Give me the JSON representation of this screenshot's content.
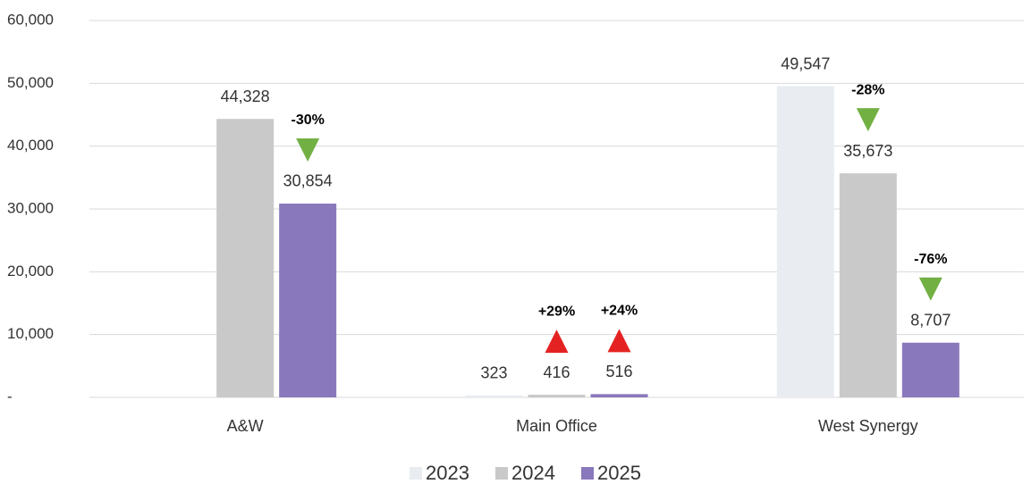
{
  "chart_data": {
    "type": "bar",
    "categories": [
      "A&W",
      "Main Office",
      "West Synergy"
    ],
    "series": [
      {
        "name": "2023",
        "color": "#e9edf1",
        "values": [
          null,
          323,
          49547
        ],
        "value_labels": [
          null,
          "323",
          "49,547"
        ],
        "changes": [
          null,
          null,
          null
        ],
        "change_labels": [
          null,
          null,
          null
        ]
      },
      {
        "name": "2024",
        "color": "#c9c9c9",
        "values": [
          44328,
          416,
          35673
        ],
        "value_labels": [
          "44,328",
          "416",
          "35,673"
        ],
        "changes": [
          null,
          29,
          -28
        ],
        "change_labels": [
          null,
          "+29%",
          "-28%"
        ]
      },
      {
        "name": "2025",
        "color": "#8a78bc",
        "values": [
          30854,
          516,
          8707
        ],
        "value_labels": [
          "30,854",
          "516",
          "8,707"
        ],
        "changes": [
          -30,
          24,
          -76
        ],
        "change_labels": [
          "-30%",
          "+24%",
          "-76%"
        ]
      }
    ],
    "up_color": "#e52222",
    "down_color": "#72b043",
    "ylim": [
      0,
      60000
    ],
    "yticks": [
      {
        "value": 0,
        "label": "-"
      },
      {
        "value": 10000,
        "label": "10,000"
      },
      {
        "value": 20000,
        "label": "20,000"
      },
      {
        "value": 30000,
        "label": "30,000"
      },
      {
        "value": 40000,
        "label": "40,000"
      },
      {
        "value": 50000,
        "label": "50,000"
      },
      {
        "value": 60000,
        "label": "60,000"
      }
    ],
    "grid": true,
    "legend": "bottom"
  }
}
